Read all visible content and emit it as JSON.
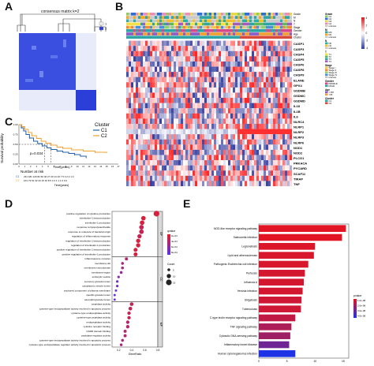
{
  "panels": {
    "a": {
      "letter": "A",
      "title": "consensus matrix k=2",
      "legend": [
        "1",
        "2"
      ]
    },
    "b": {
      "letter": "B",
      "annotation_rows": [
        "Grade",
        "M",
        "N",
        "T",
        "Stage",
        "Gender",
        "Age",
        "Cluster"
      ],
      "genes": [
        "CASP1",
        "CASP3",
        "CASP4",
        "CASP5",
        "CASP6",
        "CASP8",
        "CASP9",
        "ELANE",
        "GPX4",
        "GSDMB",
        "GSDMC",
        "GSDMD",
        "IL18",
        "IL1B",
        "IL6",
        "NLRC4",
        "NLRP1",
        "NLRP2",
        "NLRP3",
        "NLRP6",
        "NOD1",
        "NOD2",
        "PLCG1",
        "PRKACA",
        "PYCARD",
        "SCAF11",
        "TIRAP",
        "TNF"
      ],
      "legend_titles": [
        "Grade",
        "M",
        "N",
        "T",
        "Stage",
        "Gender",
        "Age",
        "Cluster"
      ],
      "legend_items": {
        "Grade": [
          "G1",
          "G2",
          "G3",
          "G4",
          "unknow"
        ],
        "M": [
          "M0",
          "M1",
          "unknow"
        ],
        "N": [
          "N0",
          "N1",
          "unknow"
        ],
        "T": [
          "T1",
          "T2",
          "T3",
          "T4"
        ],
        "Stage": [
          "Stage I",
          "Stage II",
          "Stage III",
          "Stage IV",
          "unknow"
        ],
        "Gender": [
          "FEMALE",
          "MALE"
        ],
        "Age": [
          "<=65",
          ">65"
        ],
        "Cluster": [
          "C1",
          "C2"
        ]
      },
      "scale": [
        "4",
        "2",
        "0",
        "-2",
        "-4"
      ],
      "colors": {
        "high": "#d7191c",
        "mid": "#ffffff",
        "low": "#2c3e9c"
      }
    },
    "c": {
      "letter": "C",
      "ylabel": "Survival probability",
      "xlabel": "Time(years)",
      "pval": "p=0.034",
      "legend_title": "Cluster",
      "risk_title": "Number at risk",
      "risk_ylabels": [
        "C1",
        "C2"
      ],
      "risk_rows": [
        "231 181 120 82 60 40 27 20 14 10 7 5 3 2 2 1 0",
        "101 73 51 32 23 15 10 8 5 4 2 1 1 1 0 0 0"
      ]
    },
    "d": {
      "letter": "D",
      "xlabel": "GeneRatio",
      "size_title": "Count",
      "color_title": "qvalue",
      "facets": [
        "BP",
        "CC",
        "MF"
      ],
      "size_labels": [
        "5",
        "10",
        "15"
      ],
      "color_labels": [
        "2e-04",
        "4e-04",
        "6e-04",
        "8e-04"
      ]
    },
    "e": {
      "letter": "E",
      "color_title": "pvalue",
      "color_labels": [
        "1.0e-08",
        "2.0e-08",
        "3.0e-08",
        "4.0e-08"
      ]
    }
  },
  "chart_data": [
    {
      "type": "line",
      "title": "",
      "xlabel": "Time(years)",
      "ylabel": "Survival probability",
      "xlim": [
        0,
        17
      ],
      "ylim": [
        0,
        1
      ],
      "x_ticks": [
        "0",
        "1",
        "2",
        "3",
        "4",
        "5",
        "6",
        "7",
        "8",
        "9",
        "10",
        "11",
        "12",
        "13",
        "14",
        "15",
        "16",
        "17"
      ],
      "y_ticks": [
        "0.00",
        "0.25",
        "0.50",
        "0.75",
        "1.00"
      ],
      "series": [
        {
          "name": "C1",
          "color": "#1f5fa8",
          "x": [
            0,
            0.4,
            0.8,
            1.2,
            1.8,
            2.5,
            3.2,
            4.0,
            4.8,
            5.5,
            6.5,
            7.5,
            8.5,
            9.5,
            10.5,
            11.5
          ],
          "y": [
            1.0,
            0.92,
            0.84,
            0.75,
            0.66,
            0.58,
            0.52,
            0.46,
            0.41,
            0.37,
            0.33,
            0.3,
            0.27,
            0.24,
            0.2,
            0.15
          ]
        },
        {
          "name": "C2",
          "color": "#f0a030",
          "x": [
            0,
            0.5,
            1.0,
            1.6,
            2.2,
            3.0,
            3.8,
            4.6,
            5.5,
            6.5,
            7.5,
            9.0,
            11.0,
            13.0,
            15.0
          ],
          "y": [
            1.0,
            0.95,
            0.88,
            0.8,
            0.72,
            0.65,
            0.58,
            0.53,
            0.48,
            0.43,
            0.4,
            0.36,
            0.33,
            0.3,
            0.28
          ]
        }
      ]
    },
    {
      "type": "scatter",
      "xlabel": "GeneRatio",
      "xlim": [
        0.1,
        0.8
      ],
      "x_ticks": [
        "0.2",
        "0.4",
        "0.6",
        "0.8"
      ],
      "categories": [
        "positive regulation of cytokine production",
        "interleukin-1 beta production",
        "interleukin-1 production",
        "response to lipopolysaccharide",
        "response to molecule of bacterial origin",
        "regulation of inflammatory response",
        "regulation of interleukin-1 beta production",
        "regulation of interleukin-1 production",
        "positive regulation of interleukin-1 beta production",
        "positive regulation of interleukin-1 production",
        "inflammasome complex",
        "membrane raft",
        "membrane microdomain",
        "membrane region",
        "endocytic vesicle",
        "secretory granule lumen",
        "cytoplasmic vesicle lumen",
        "anchored component of plasma membrane",
        "specific granule lumen",
        "azurophil granule lumen",
        "peptidase activity",
        "cysteine-type endopeptidase activity involved in apoptotic process",
        "cysteine-type endopeptidase activity",
        "cysteine-type peptidase activity",
        "endopeptidase activity",
        "cytokine receptor binding",
        "CARD domain binding",
        "peptidase regulator activity",
        "cysteine-type endopeptidase activity involved in apoptotic process",
        "cysteine-type endopeptidase regulator activity involved in apoptotic process"
      ],
      "facet": [
        "BP",
        "BP",
        "BP",
        "BP",
        "BP",
        "BP",
        "BP",
        "BP",
        "BP",
        "BP",
        "CC",
        "CC",
        "CC",
        "CC",
        "CC",
        "CC",
        "CC",
        "CC",
        "CC",
        "CC",
        "MF",
        "MF",
        "MF",
        "MF",
        "MF",
        "MF",
        "MF",
        "MF",
        "MF",
        "MF"
      ],
      "x": [
        0.78,
        0.58,
        0.56,
        0.55,
        0.55,
        0.52,
        0.5,
        0.5,
        0.46,
        0.46,
        0.32,
        0.26,
        0.26,
        0.24,
        0.2,
        0.18,
        0.18,
        0.16,
        0.14,
        0.14,
        0.4,
        0.38,
        0.36,
        0.36,
        0.34,
        0.34,
        0.3,
        0.3,
        0.26,
        0.24
      ],
      "count": [
        15,
        11,
        11,
        11,
        11,
        10,
        10,
        10,
        9,
        9,
        6,
        5,
        5,
        5,
        4,
        4,
        4,
        3,
        3,
        3,
        8,
        8,
        7,
        7,
        7,
        7,
        6,
        6,
        5,
        5
      ],
      "qvalue": [
        0.0001,
        0.0001,
        0.0001,
        0.0002,
        0.0002,
        0.0002,
        0.0001,
        0.0001,
        0.0001,
        0.0001,
        0.0003,
        0.0004,
        0.0004,
        0.0005,
        0.0006,
        0.0007,
        0.0007,
        0.0008,
        0.0008,
        0.0008,
        0.0002,
        0.0002,
        0.0002,
        0.0002,
        0.0003,
        0.0003,
        0.0003,
        0.0003,
        0.0004,
        0.0004
      ]
    },
    {
      "type": "bar",
      "xlim": [
        0,
        16
      ],
      "x_ticks": [
        "0",
        "5",
        "10",
        "15"
      ],
      "categories": [
        "NOD-like receptor signaling pathway",
        "Salmonella infection",
        "Legionellosis",
        "Lipid and atherosclerosis",
        "Pathogenic Escherichia coli infection",
        "Pertussis",
        "Influenza A",
        "Yersinia infection",
        "Shigellosis",
        "Tuberculosis",
        "C-type lectin receptor signaling pathway",
        "TNF signaling pathway",
        "Cytosolic DNA-sensing pathway",
        "Inflammatory bowel disease",
        "Human cytomegalovirus infection"
      ],
      "values": [
        15.5,
        14.8,
        10.0,
        9.8,
        8.8,
        8.2,
        8.0,
        7.8,
        7.6,
        7.5,
        6.5,
        5.8,
        5.6,
        5.4,
        6.5
      ],
      "pvalue": [
        1e-09,
        1e-09,
        2e-09,
        3e-09,
        3e-09,
        4e-09,
        4e-09,
        4e-09,
        5e-09,
        5e-09,
        8e-09,
        1.2e-08,
        1.5e-08,
        2.5e-08,
        4.2e-08
      ]
    }
  ]
}
